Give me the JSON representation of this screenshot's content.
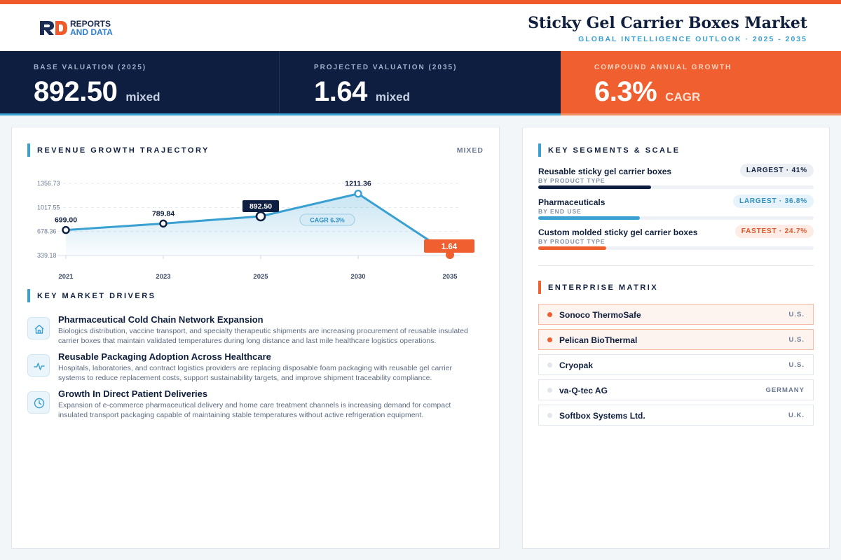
{
  "header": {
    "logo_line1": "REPORTS",
    "logo_line2": "AND DATA",
    "title": "Sticky Gel Carrier Boxes Market",
    "subtitle": "GLOBAL INTELLIGENCE OUTLOOK  ·  2025 - 2035"
  },
  "kpis": [
    {
      "label": "BASE VALUATION (2025)",
      "value": "892.50",
      "unit": "mixed"
    },
    {
      "label": "PROJECTED VALUATION (2035)",
      "value": "1.64",
      "unit": "mixed"
    },
    {
      "label": "COMPOUND ANNUAL GROWTH",
      "value": "6.3%",
      "unit": "CAGR"
    }
  ],
  "chart_section": {
    "title": "REVENUE GROWTH TRAJECTORY",
    "unit": "MIXED"
  },
  "chart_data": {
    "type": "line",
    "x": [
      "2021",
      "2023",
      "2025",
      "2030",
      "2035"
    ],
    "values": [
      699.0,
      789.84,
      892.5,
      1211.36,
      1.64
    ],
    "value_labels": [
      "699.00",
      "789.84",
      "892.50",
      "1211.36",
      "1.64"
    ],
    "y_ticks": [
      339.18,
      678.36,
      1017.55,
      1356.73
    ],
    "y_tick_labels": [
      "339.18",
      "678.36",
      "1017.55",
      "1356.73"
    ],
    "ylim": [
      339.18,
      1356.73
    ],
    "grid": true,
    "annotation": "CAGR 6.3%",
    "highlight_index": 2,
    "final_index": 4
  },
  "drivers_section": {
    "title": "KEY MARKET DRIVERS"
  },
  "drivers": [
    {
      "icon": "home-icon",
      "title": "Pharmaceutical Cold Chain Network Expansion",
      "desc": "Biologics distribution, vaccine transport, and specialty therapeutic shipments are increasing procurement of reusable insulated carrier boxes that maintain validated temperatures during long distance and last mile healthcare logistics operations."
    },
    {
      "icon": "pulse-icon",
      "title": "Reusable Packaging Adoption Across Healthcare",
      "desc": "Hospitals, laboratories, and contract logistics providers are replacing disposable foam packaging with reusable gel carrier systems to reduce replacement costs, support sustainability targets, and improve shipment traceability compliance."
    },
    {
      "icon": "clock-icon",
      "title": "Growth In Direct Patient Deliveries",
      "desc": "Expansion of e-commerce pharmaceutical delivery and home care treatment channels is increasing demand for compact insulated transport packaging capable of maintaining stable temperatures without active refrigeration equipment."
    }
  ],
  "segments_section": {
    "title": "KEY SEGMENTS & SCALE"
  },
  "segments": [
    {
      "name": "Reusable sticky gel carrier boxes",
      "category": "BY PRODUCT TYPE",
      "badge": "LARGEST · 41%",
      "share": 41,
      "color": "#0e1e40",
      "badge_bg": "#eceff4",
      "badge_color": "#0f1f3d"
    },
    {
      "name": "Pharmaceuticals",
      "category": "BY END USE",
      "badge": "LARGEST · 36.8%",
      "share": 36.8,
      "color": "#3aa0d2",
      "badge_bg": "#e6f3fa",
      "badge_color": "#2e8fc2"
    },
    {
      "name": "Custom molded sticky gel carrier boxes",
      "category": "BY PRODUCT TYPE",
      "badge": "FASTEST · 24.7%",
      "share": 24.7,
      "color": "#f05f2f",
      "badge_bg": "#fdece5",
      "badge_color": "#e2572a"
    }
  ],
  "enterprise_section": {
    "title": "ENTERPRISE MATRIX"
  },
  "enterprises": [
    {
      "name": "Sonoco ThermoSafe",
      "country": "U.S.",
      "highlight": true
    },
    {
      "name": "Pelican BioThermal",
      "country": "U.S.",
      "highlight": true
    },
    {
      "name": "Cryopak",
      "country": "U.S.",
      "highlight": false
    },
    {
      "name": "va-Q-tec AG",
      "country": "GERMANY",
      "highlight": false
    },
    {
      "name": "Softbox Systems Ltd.",
      "country": "U.K.",
      "highlight": false
    }
  ],
  "colors": {
    "navy": "#0e1e40",
    "blue": "#3aa0d2",
    "orange": "#f05f2f"
  }
}
